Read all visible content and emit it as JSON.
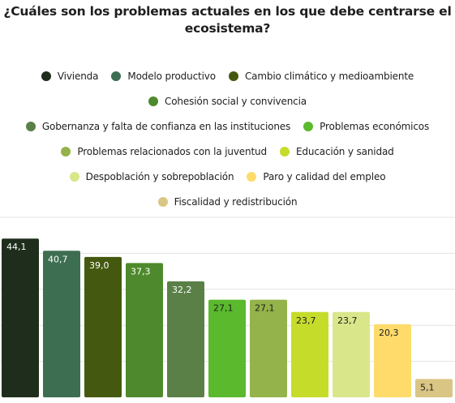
{
  "chart_data": {
    "type": "bar",
    "title": "¿Cuáles son los problemas actuales en los que debe centrarse el ecosistema?",
    "categories": [
      "Vivienda",
      "Modelo productivo",
      "Cambio climático y medioambiente",
      "Cohesión social y convivencia",
      "Gobernanza y falta de confianza en las instituciones",
      "Problemas económicos",
      "Problemas relacionados con la juventud",
      "Educación y sanidad",
      "Despoblación y sobrepoblación",
      "Paro y calidad del empleo",
      "Fiscalidad y redistribución"
    ],
    "values": [
      44.1,
      40.7,
      39.0,
      37.3,
      32.2,
      27.1,
      27.1,
      23.7,
      23.7,
      20.3,
      5.1
    ],
    "value_labels": [
      "44,1",
      "40,7",
      "39,0",
      "37,3",
      "32,2",
      "27,1",
      "27,1",
      "23,7",
      "23,7",
      "20,3",
      "5,1"
    ],
    "colors": [
      "#1f2e1c",
      "#3d6e52",
      "#44590f",
      "#4e8a2d",
      "#5a8048",
      "#5bb92e",
      "#94b34a",
      "#c6dc2b",
      "#d9e68a",
      "#fedb6a",
      "#dac684"
    ],
    "label_colors": [
      "#ffffff",
      "#ffffff",
      "#ffffff",
      "#ffffff",
      "#ffffff",
      "#1e1e1e",
      "#1e1e1e",
      "#1e1e1e",
      "#1e1e1e",
      "#1e1e1e",
      "#1e1e1e"
    ],
    "ylim": [
      0,
      50
    ],
    "grid": true,
    "legend_position": "top"
  },
  "legend_rows": [
    [
      0,
      1,
      2
    ],
    [
      3
    ],
    [
      4,
      5
    ],
    [
      6,
      7
    ],
    [
      8,
      9
    ],
    [
      10
    ]
  ]
}
